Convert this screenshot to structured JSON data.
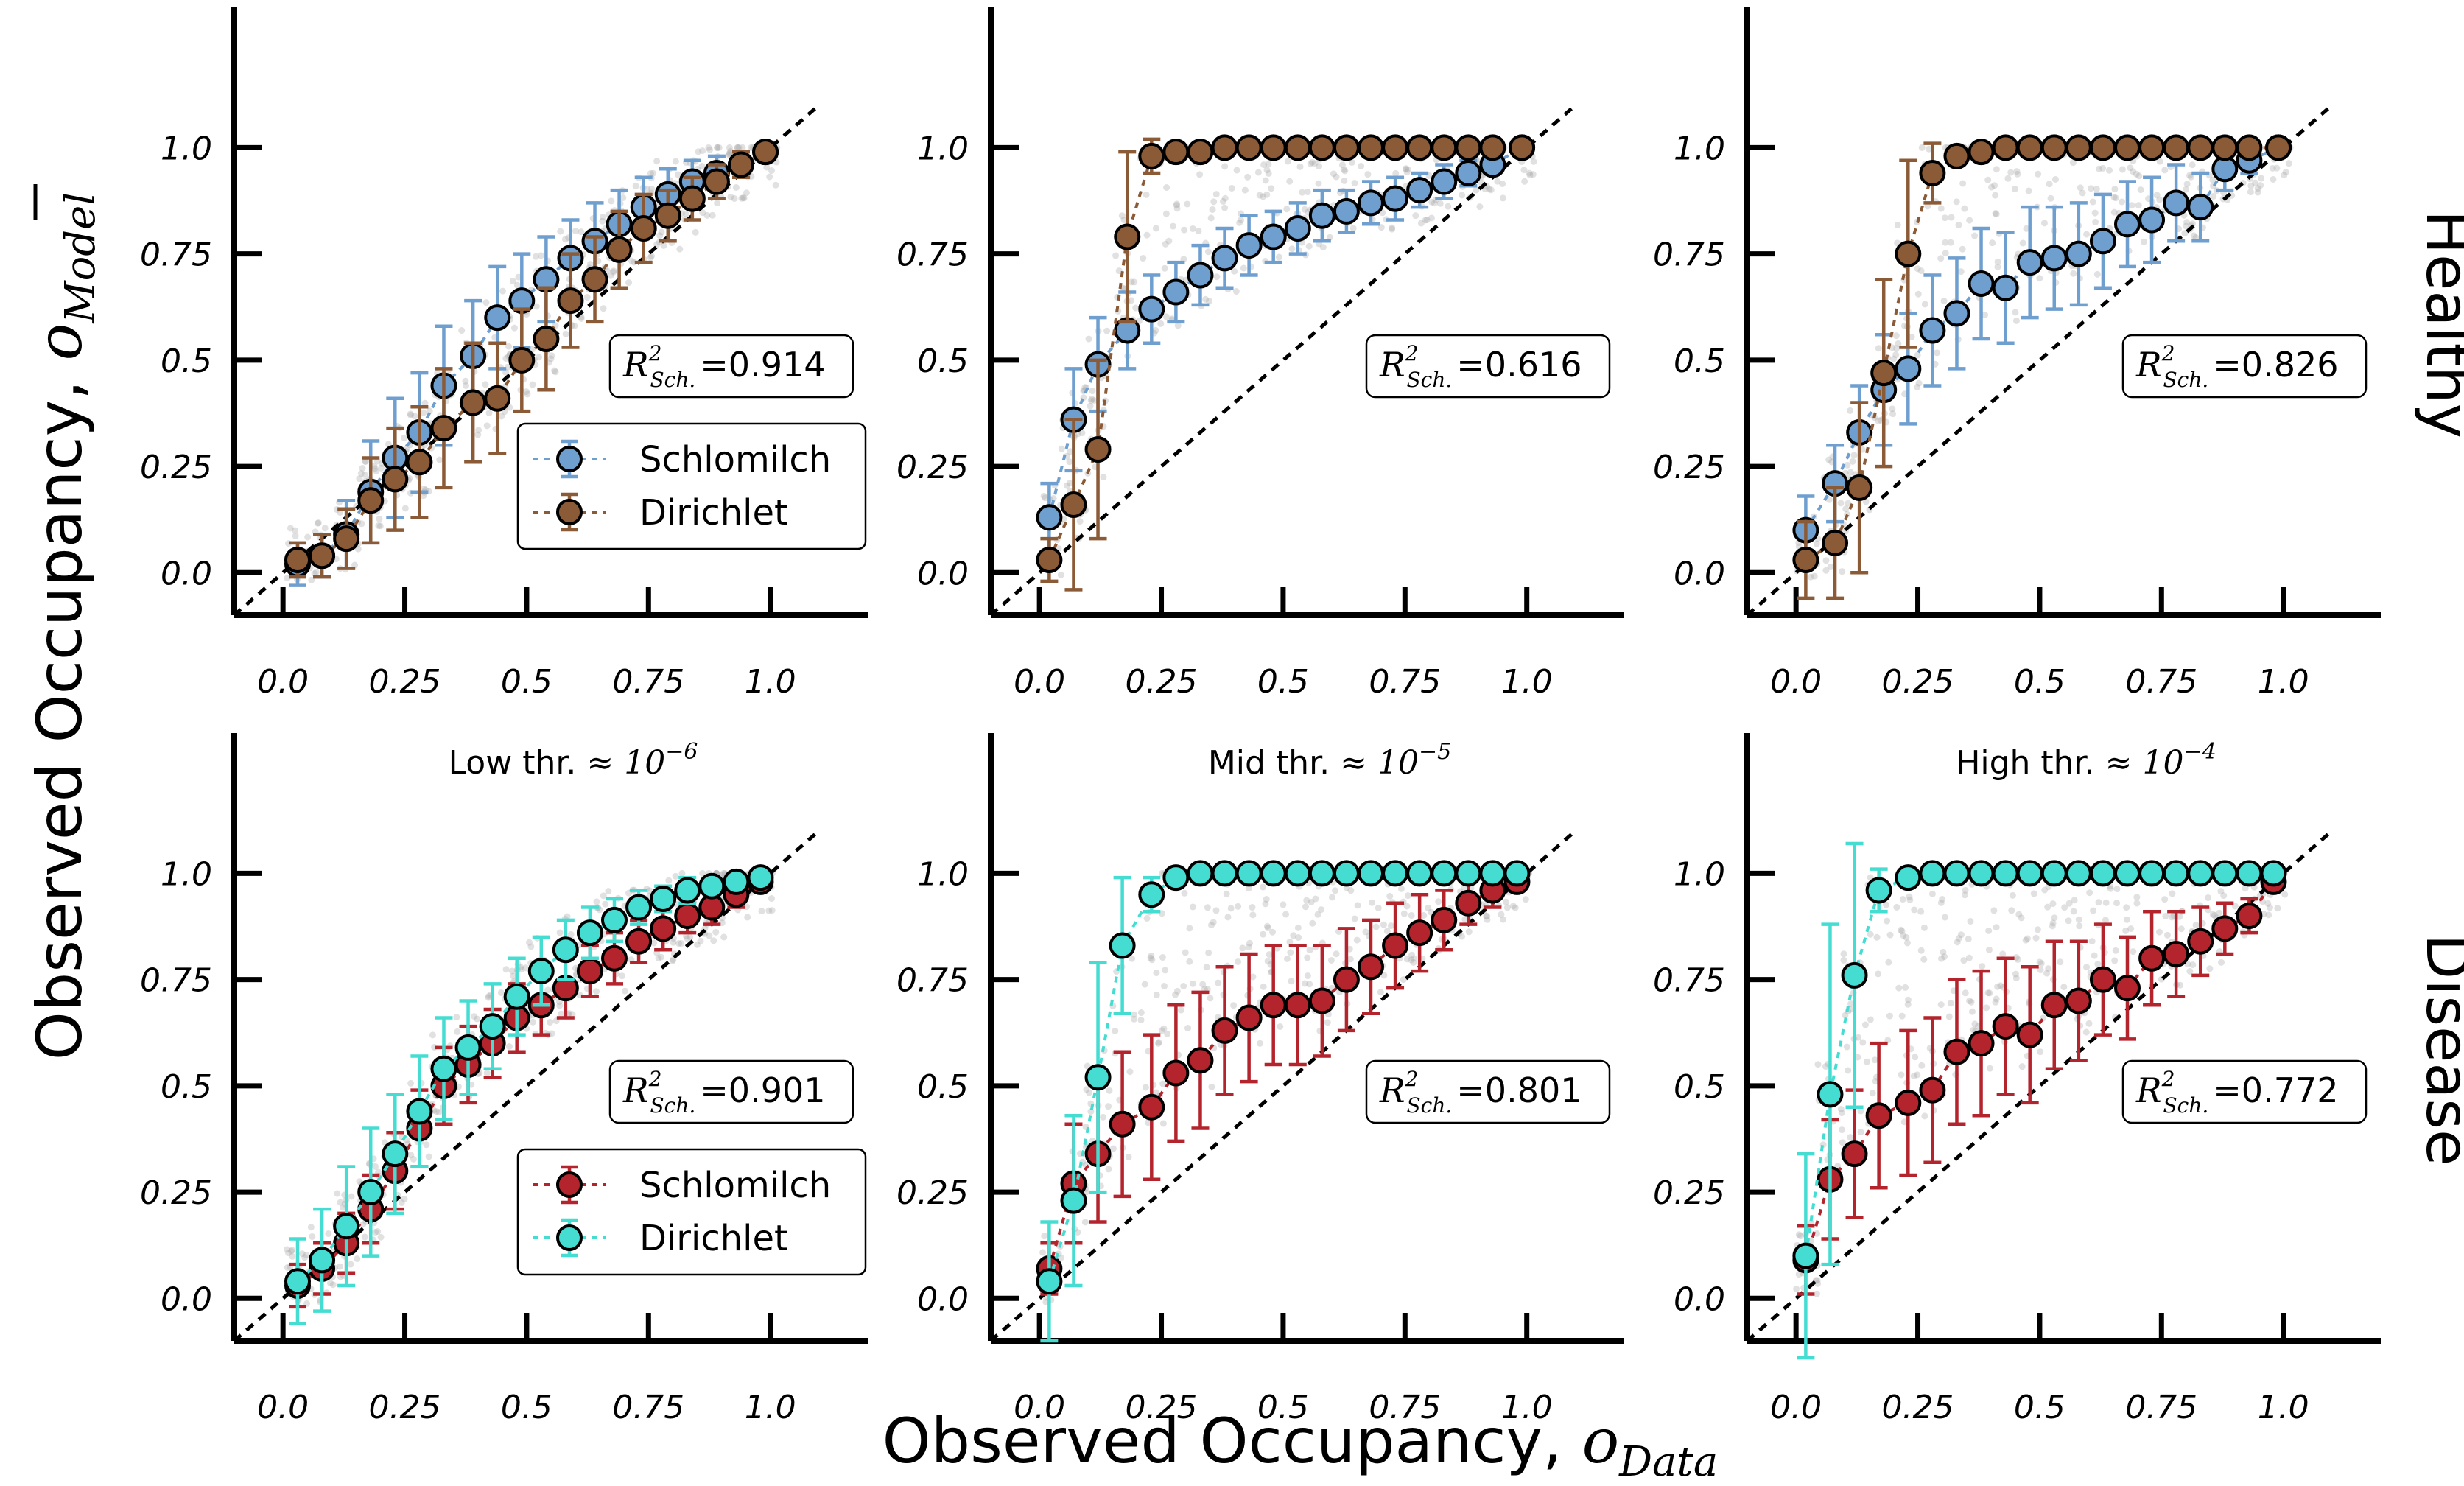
{
  "x_axis_label": "Observed Occupancy, ",
  "x_axis_symbol": "o",
  "x_axis_sub": "Data",
  "y_axis_label": "Observed Occupancy, ",
  "y_axis_symbol": "o",
  "y_axis_sub": "Model",
  "row_labels": [
    "Healthy",
    "Disease"
  ],
  "r2_prefix": "R",
  "r2_sup": "2",
  "r2_sub": "Sch.",
  "colors": {
    "healthy_schlomilch": "#6f9fcf",
    "healthy_dirichlet": "#8b5a36",
    "disease_schlomilch": "#b3242d",
    "disease_dirichlet": "#45ddd2",
    "scatter": "#a9a9a9",
    "diagonal": "#000000"
  },
  "chart_data": [
    {
      "type": "scatter",
      "row": "Healthy",
      "title": "",
      "xlim": [
        -0.1,
        1.2
      ],
      "ylim": [
        -0.1,
        1.2
      ],
      "xticks": [
        "0.0",
        "0.25",
        "0.5",
        "0.75",
        "1.0"
      ],
      "yticks": [
        "0.0",
        "0.25",
        "0.5",
        "0.75",
        "1.0"
      ],
      "r2": "=0.914",
      "legend": [
        "Schlomilch",
        "Dirichlet"
      ],
      "series": [
        {
          "name": "Schlomilch",
          "color": "healthy_schlomilch",
          "x": [
            0.03,
            0.08,
            0.13,
            0.18,
            0.23,
            0.28,
            0.33,
            0.39,
            0.44,
            0.49,
            0.54,
            0.59,
            0.64,
            0.69,
            0.74,
            0.79,
            0.84,
            0.89,
            0.94,
            0.99
          ],
          "y": [
            0.02,
            0.04,
            0.09,
            0.19,
            0.27,
            0.33,
            0.44,
            0.51,
            0.6,
            0.64,
            0.69,
            0.74,
            0.78,
            0.82,
            0.86,
            0.89,
            0.92,
            0.94,
            0.96,
            0.99
          ],
          "err": [
            0.05,
            0.05,
            0.08,
            0.12,
            0.14,
            0.14,
            0.14,
            0.13,
            0.12,
            0.11,
            0.1,
            0.09,
            0.09,
            0.08,
            0.07,
            0.06,
            0.05,
            0.04,
            0.03,
            0.02
          ]
        },
        {
          "name": "Dirichlet",
          "color": "healthy_dirichlet",
          "x": [
            0.03,
            0.08,
            0.13,
            0.18,
            0.23,
            0.28,
            0.33,
            0.39,
            0.44,
            0.49,
            0.54,
            0.59,
            0.64,
            0.69,
            0.74,
            0.79,
            0.84,
            0.89,
            0.94,
            0.99
          ],
          "y": [
            0.03,
            0.04,
            0.08,
            0.17,
            0.22,
            0.26,
            0.34,
            0.4,
            0.41,
            0.5,
            0.55,
            0.64,
            0.69,
            0.76,
            0.81,
            0.84,
            0.88,
            0.92,
            0.96,
            0.99
          ],
          "err": [
            0.04,
            0.05,
            0.07,
            0.1,
            0.12,
            0.13,
            0.14,
            0.14,
            0.13,
            0.12,
            0.12,
            0.11,
            0.1,
            0.09,
            0.08,
            0.06,
            0.05,
            0.04,
            0.03,
            0.02
          ]
        }
      ]
    },
    {
      "type": "scatter",
      "row": "Healthy",
      "title": "",
      "xlim": [
        -0.1,
        1.2
      ],
      "ylim": [
        -0.1,
        1.2
      ],
      "xticks": [
        "0.0",
        "0.25",
        "0.5",
        "0.75",
        "1.0"
      ],
      "yticks": [
        "0.0",
        "0.25",
        "0.5",
        "0.75",
        "1.0"
      ],
      "r2": "=0.616",
      "legend": [],
      "series": [
        {
          "name": "Schlomilch",
          "color": "healthy_schlomilch",
          "x": [
            0.02,
            0.07,
            0.12,
            0.18,
            0.23,
            0.28,
            0.33,
            0.38,
            0.43,
            0.48,
            0.53,
            0.58,
            0.63,
            0.68,
            0.73,
            0.78,
            0.83,
            0.88,
            0.93,
            0.99
          ],
          "y": [
            0.13,
            0.36,
            0.49,
            0.57,
            0.62,
            0.66,
            0.7,
            0.74,
            0.77,
            0.79,
            0.81,
            0.84,
            0.85,
            0.87,
            0.88,
            0.9,
            0.92,
            0.94,
            0.96,
            1.0
          ],
          "err": [
            0.08,
            0.12,
            0.11,
            0.09,
            0.08,
            0.07,
            0.07,
            0.07,
            0.07,
            0.06,
            0.06,
            0.06,
            0.05,
            0.05,
            0.05,
            0.04,
            0.04,
            0.03,
            0.02,
            0.01
          ]
        },
        {
          "name": "Dirichlet",
          "color": "healthy_dirichlet",
          "x": [
            0.02,
            0.07,
            0.12,
            0.18,
            0.23,
            0.28,
            0.33,
            0.38,
            0.43,
            0.48,
            0.53,
            0.58,
            0.63,
            0.68,
            0.73,
            0.78,
            0.83,
            0.88,
            0.93,
            0.99
          ],
          "y": [
            0.03,
            0.16,
            0.29,
            0.79,
            0.98,
            0.99,
            0.99,
            1.0,
            1.0,
            1.0,
            1.0,
            1.0,
            1.0,
            1.0,
            1.0,
            1.0,
            1.0,
            1.0,
            1.0,
            1.0
          ],
          "err": [
            0.05,
            0.2,
            0.21,
            0.2,
            0.04,
            0.02,
            0.01,
            0.01,
            0.01,
            0.01,
            0.01,
            0.01,
            0.01,
            0.01,
            0.01,
            0.01,
            0.01,
            0.01,
            0.01,
            0.01
          ]
        }
      ]
    },
    {
      "type": "scatter",
      "row": "Healthy",
      "title": "",
      "xlim": [
        -0.1,
        1.2
      ],
      "ylim": [
        -0.1,
        1.2
      ],
      "xticks": [
        "0.0",
        "0.25",
        "0.5",
        "0.75",
        "1.0"
      ],
      "yticks": [
        "0.0",
        "0.25",
        "0.5",
        "0.75",
        "1.0"
      ],
      "r2": "=0.826",
      "legend": [],
      "series": [
        {
          "name": "Schlomilch",
          "color": "healthy_schlomilch",
          "x": [
            0.02,
            0.08,
            0.13,
            0.18,
            0.23,
            0.28,
            0.33,
            0.38,
            0.43,
            0.48,
            0.53,
            0.58,
            0.63,
            0.68,
            0.73,
            0.78,
            0.83,
            0.88,
            0.93,
            0.99
          ],
          "y": [
            0.1,
            0.21,
            0.33,
            0.43,
            0.48,
            0.57,
            0.61,
            0.68,
            0.67,
            0.73,
            0.74,
            0.75,
            0.78,
            0.82,
            0.83,
            0.87,
            0.86,
            0.95,
            0.97,
            1.0
          ],
          "err": [
            0.08,
            0.09,
            0.11,
            0.13,
            0.13,
            0.13,
            0.13,
            0.13,
            0.13,
            0.13,
            0.12,
            0.12,
            0.11,
            0.1,
            0.1,
            0.09,
            0.08,
            0.05,
            0.03,
            0.01
          ]
        },
        {
          "name": "Dirichlet",
          "color": "healthy_dirichlet",
          "x": [
            0.02,
            0.08,
            0.13,
            0.18,
            0.23,
            0.28,
            0.33,
            0.38,
            0.43,
            0.48,
            0.53,
            0.58,
            0.63,
            0.68,
            0.73,
            0.78,
            0.83,
            0.88,
            0.93,
            0.99
          ],
          "y": [
            0.03,
            0.07,
            0.2,
            0.47,
            0.75,
            0.94,
            0.98,
            0.99,
            1.0,
            1.0,
            1.0,
            1.0,
            1.0,
            1.0,
            1.0,
            1.0,
            1.0,
            1.0,
            1.0,
            1.0
          ],
          "err": [
            0.09,
            0.13,
            0.2,
            0.22,
            0.22,
            0.07,
            0.02,
            0.01,
            0.01,
            0.01,
            0.01,
            0.01,
            0.01,
            0.01,
            0.01,
            0.01,
            0.01,
            0.01,
            0.01,
            0.01
          ]
        }
      ]
    },
    {
      "type": "scatter",
      "row": "Disease",
      "title": "Low thr.",
      "title_math": "≈ 10",
      "title_exp": "−6",
      "xlim": [
        -0.1,
        1.2
      ],
      "ylim": [
        -0.1,
        1.2
      ],
      "xticks": [
        "0.0",
        "0.25",
        "0.5",
        "0.75",
        "1.0"
      ],
      "yticks": [
        "0.0",
        "0.25",
        "0.5",
        "0.75",
        "1.0"
      ],
      "r2": "=0.901",
      "legend": [
        "Schlomilch",
        "Dirichlet"
      ],
      "series": [
        {
          "name": "Schlomilch",
          "color": "disease_schlomilch",
          "x": [
            0.03,
            0.08,
            0.13,
            0.18,
            0.23,
            0.28,
            0.33,
            0.38,
            0.43,
            0.48,
            0.53,
            0.58,
            0.63,
            0.68,
            0.73,
            0.78,
            0.83,
            0.88,
            0.93,
            0.98
          ],
          "y": [
            0.03,
            0.07,
            0.13,
            0.21,
            0.3,
            0.4,
            0.5,
            0.55,
            0.6,
            0.66,
            0.69,
            0.73,
            0.77,
            0.8,
            0.84,
            0.87,
            0.9,
            0.92,
            0.95,
            0.98
          ],
          "err": [
            0.05,
            0.06,
            0.07,
            0.08,
            0.09,
            0.09,
            0.09,
            0.09,
            0.08,
            0.08,
            0.07,
            0.07,
            0.06,
            0.06,
            0.05,
            0.05,
            0.04,
            0.04,
            0.03,
            0.02
          ]
        },
        {
          "name": "Dirichlet",
          "color": "disease_dirichlet",
          "x": [
            0.03,
            0.08,
            0.13,
            0.18,
            0.23,
            0.28,
            0.33,
            0.38,
            0.43,
            0.48,
            0.53,
            0.58,
            0.63,
            0.68,
            0.73,
            0.78,
            0.83,
            0.88,
            0.93,
            0.98
          ],
          "y": [
            0.04,
            0.09,
            0.17,
            0.25,
            0.34,
            0.44,
            0.54,
            0.59,
            0.64,
            0.71,
            0.77,
            0.82,
            0.86,
            0.89,
            0.92,
            0.94,
            0.96,
            0.97,
            0.98,
            0.99
          ],
          "err": [
            0.1,
            0.12,
            0.14,
            0.15,
            0.14,
            0.13,
            0.12,
            0.11,
            0.1,
            0.09,
            0.08,
            0.07,
            0.06,
            0.05,
            0.04,
            0.03,
            0.03,
            0.02,
            0.02,
            0.01
          ]
        }
      ]
    },
    {
      "type": "scatter",
      "row": "Disease",
      "title": "Mid thr.",
      "title_math": "≈ 10",
      "title_exp": "−5",
      "xlim": [
        -0.1,
        1.2
      ],
      "ylim": [
        -0.1,
        1.2
      ],
      "xticks": [
        "0.0",
        "0.25",
        "0.5",
        "0.75",
        "1.0"
      ],
      "yticks": [
        "0.0",
        "0.25",
        "0.5",
        "0.75",
        "1.0"
      ],
      "r2": "=0.801",
      "legend": [],
      "series": [
        {
          "name": "Schlomilch",
          "color": "disease_schlomilch",
          "x": [
            0.02,
            0.07,
            0.12,
            0.17,
            0.23,
            0.28,
            0.33,
            0.38,
            0.43,
            0.48,
            0.53,
            0.58,
            0.63,
            0.68,
            0.73,
            0.78,
            0.83,
            0.88,
            0.93,
            0.98
          ],
          "y": [
            0.07,
            0.27,
            0.34,
            0.41,
            0.45,
            0.53,
            0.56,
            0.63,
            0.66,
            0.69,
            0.69,
            0.7,
            0.75,
            0.78,
            0.83,
            0.86,
            0.89,
            0.93,
            0.96,
            0.98
          ],
          "err": [
            0.06,
            0.14,
            0.16,
            0.17,
            0.17,
            0.16,
            0.16,
            0.15,
            0.15,
            0.14,
            0.14,
            0.13,
            0.12,
            0.11,
            0.1,
            0.09,
            0.07,
            0.05,
            0.04,
            0.02
          ]
        },
        {
          "name": "Dirichlet",
          "color": "disease_dirichlet",
          "x": [
            0.02,
            0.07,
            0.12,
            0.17,
            0.23,
            0.28,
            0.33,
            0.38,
            0.43,
            0.48,
            0.53,
            0.58,
            0.63,
            0.68,
            0.73,
            0.78,
            0.83,
            0.88,
            0.93,
            0.98
          ],
          "y": [
            0.04,
            0.23,
            0.52,
            0.83,
            0.95,
            0.99,
            1.0,
            1.0,
            1.0,
            1.0,
            1.0,
            1.0,
            1.0,
            1.0,
            1.0,
            1.0,
            1.0,
            1.0,
            1.0,
            1.0
          ],
          "err": [
            0.14,
            0.2,
            0.27,
            0.16,
            0.04,
            0.01,
            0.01,
            0.01,
            0.01,
            0.01,
            0.01,
            0.01,
            0.01,
            0.01,
            0.01,
            0.01,
            0.01,
            0.01,
            0.01,
            0.01
          ]
        }
      ]
    },
    {
      "type": "scatter",
      "row": "Disease",
      "title": "High thr.",
      "title_math": "≈ 10",
      "title_exp": "−4",
      "xlim": [
        -0.1,
        1.2
      ],
      "ylim": [
        -0.1,
        1.2
      ],
      "xticks": [
        "0.0",
        "0.25",
        "0.5",
        "0.75",
        "1.0"
      ],
      "yticks": [
        "0.0",
        "0.25",
        "0.5",
        "0.75",
        "1.0"
      ],
      "r2": "=0.772",
      "legend": [],
      "series": [
        {
          "name": "Schlomilch",
          "color": "disease_schlomilch",
          "x": [
            0.02,
            0.07,
            0.12,
            0.17,
            0.23,
            0.28,
            0.33,
            0.38,
            0.43,
            0.48,
            0.53,
            0.58,
            0.63,
            0.68,
            0.73,
            0.78,
            0.83,
            0.88,
            0.93,
            0.98
          ],
          "y": [
            0.09,
            0.28,
            0.34,
            0.43,
            0.46,
            0.49,
            0.58,
            0.6,
            0.64,
            0.62,
            0.69,
            0.7,
            0.75,
            0.73,
            0.8,
            0.81,
            0.84,
            0.87,
            0.9,
            0.98
          ],
          "err": [
            0.08,
            0.14,
            0.15,
            0.17,
            0.17,
            0.17,
            0.17,
            0.17,
            0.16,
            0.16,
            0.15,
            0.14,
            0.13,
            0.12,
            0.11,
            0.1,
            0.08,
            0.06,
            0.04,
            0.02
          ]
        },
        {
          "name": "Dirichlet",
          "color": "disease_dirichlet",
          "x": [
            0.02,
            0.07,
            0.12,
            0.17,
            0.23,
            0.28,
            0.33,
            0.38,
            0.43,
            0.48,
            0.53,
            0.58,
            0.63,
            0.68,
            0.73,
            0.78,
            0.83,
            0.88,
            0.93,
            0.98
          ],
          "y": [
            0.1,
            0.48,
            0.76,
            0.96,
            0.99,
            1.0,
            1.0,
            1.0,
            1.0,
            1.0,
            1.0,
            1.0,
            1.0,
            1.0,
            1.0,
            1.0,
            1.0,
            1.0,
            1.0,
            1.0
          ],
          "err": [
            0.24,
            0.4,
            0.31,
            0.05,
            0.01,
            0.01,
            0.01,
            0.01,
            0.01,
            0.01,
            0.01,
            0.01,
            0.01,
            0.01,
            0.01,
            0.01,
            0.01,
            0.01,
            0.01,
            0.01
          ]
        }
      ]
    }
  ]
}
